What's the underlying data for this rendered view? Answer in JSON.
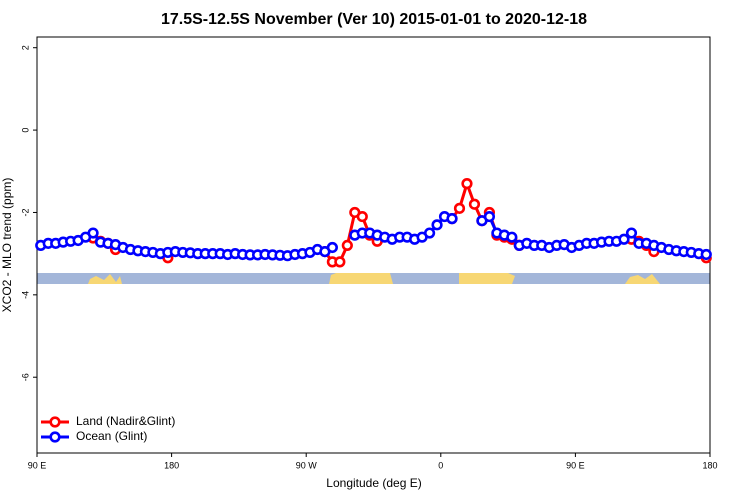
{
  "chart_data": {
    "type": "line",
    "title": "17.5S-12.5S November (Ver 10)   2015-01-01 to 2020-12-18",
    "x_label": "Longitude (deg E)",
    "y_label": "XCO2 - MLO trend (ppm)",
    "xlim": [
      90,
      540
    ],
    "ylim": [
      -7.84,
      2.26
    ],
    "xticks": [
      {
        "value": 90,
        "label": "90 E"
      },
      180,
      {
        "value": 270,
        "label": "90 W"
      },
      {
        "value": 360,
        "label": "0"
      },
      {
        "value": 450,
        "label": "90 E"
      },
      {
        "value": 540,
        "label": "180"
      }
    ],
    "yticks": [
      2,
      0,
      -2,
      -4,
      -6
    ],
    "legend": "bottom-left",
    "x": [
      92.5,
      97.5,
      102.5,
      107.5,
      112.5,
      117.5,
      122.5,
      127.5,
      132.5,
      137.5,
      142.5,
      147.5,
      152.5,
      157.5,
      162.5,
      167.5,
      172.5,
      177.5,
      182.5,
      187.5,
      192.5,
      197.5,
      202.5,
      207.5,
      212.5,
      217.5,
      222.5,
      227.5,
      232.5,
      237.5,
      242.5,
      247.5,
      252.5,
      257.5,
      262.5,
      267.5,
      272.5,
      277.5,
      282.5,
      287.5,
      292.5,
      297.5,
      302.5,
      307.5,
      312.5,
      317.5,
      322.5,
      327.5,
      332.5,
      337.5,
      342.5,
      347.5,
      352.5,
      357.5,
      362.5,
      367.5,
      372.5,
      377.5,
      382.5,
      387.5,
      392.5,
      397.5,
      402.5,
      407.5,
      412.5,
      417.5,
      422.5,
      427.5,
      432.5,
      437.5,
      442.5,
      447.5,
      452.5,
      457.5,
      462.5,
      467.5,
      472.5,
      477.5,
      482.5,
      487.5,
      492.5,
      497.5,
      502.5,
      507.5,
      512.5,
      517.5,
      522.5,
      527.5,
      532.5,
      537.5
    ],
    "series": [
      {
        "name": "Land (Nadir&Glint)",
        "color": "#ff0000",
        "values": [
          null,
          null,
          null,
          null,
          null,
          null,
          null,
          -2.62,
          -2.7,
          -2.75,
          -2.9,
          null,
          null,
          null,
          null,
          null,
          null,
          -3.1,
          null,
          null,
          null,
          null,
          null,
          null,
          null,
          null,
          null,
          null,
          null,
          null,
          null,
          null,
          null,
          null,
          null,
          null,
          null,
          null,
          -2.95,
          -3.2,
          -3.2,
          -2.8,
          -2.0,
          -2.1,
          -2.55,
          -2.7,
          null,
          null,
          null,
          null,
          null,
          null,
          null,
          null,
          null,
          -2.15,
          -1.9,
          -1.3,
          -1.8,
          -2.2,
          -2.0,
          -2.55,
          -2.6,
          -2.65,
          -2.8,
          null,
          null,
          null,
          null,
          null,
          null,
          null,
          null,
          null,
          null,
          null,
          null,
          null,
          null,
          -2.65,
          -2.7,
          -2.8,
          -2.95,
          null,
          null,
          null,
          null,
          null,
          null,
          -3.1
        ]
      },
      {
        "name": "Ocean (Glint)",
        "color": "#0000ff",
        "values": [
          -2.8,
          -2.75,
          -2.75,
          -2.72,
          -2.7,
          -2.68,
          -2.6,
          -2.5,
          -2.72,
          -2.75,
          -2.78,
          -2.85,
          -2.9,
          -2.93,
          -2.95,
          -2.97,
          -3.0,
          -2.97,
          -2.95,
          -2.97,
          -2.98,
          -3.0,
          -3.0,
          -3.0,
          -3.0,
          -3.02,
          -3.0,
          -3.02,
          -3.03,
          -3.03,
          -3.02,
          -3.03,
          -3.04,
          -3.05,
          -3.02,
          -3.0,
          -2.97,
          -2.9,
          -2.95,
          -2.85,
          null,
          null,
          -2.55,
          -2.5,
          -2.5,
          -2.55,
          -2.6,
          -2.65,
          -2.6,
          -2.6,
          -2.65,
          -2.6,
          -2.5,
          -2.3,
          -2.1,
          -2.15,
          null,
          null,
          null,
          -2.2,
          -2.1,
          -2.5,
          -2.55,
          -2.6,
          -2.8,
          -2.75,
          -2.8,
          -2.8,
          -2.85,
          -2.8,
          -2.78,
          -2.85,
          -2.8,
          -2.75,
          -2.75,
          -2.72,
          -2.7,
          -2.7,
          -2.65,
          -2.5,
          -2.75,
          -2.75,
          -2.8,
          -2.85,
          -2.9,
          -2.93,
          -2.95,
          -2.97,
          -3.0,
          -3.02
        ]
      }
    ]
  }
}
